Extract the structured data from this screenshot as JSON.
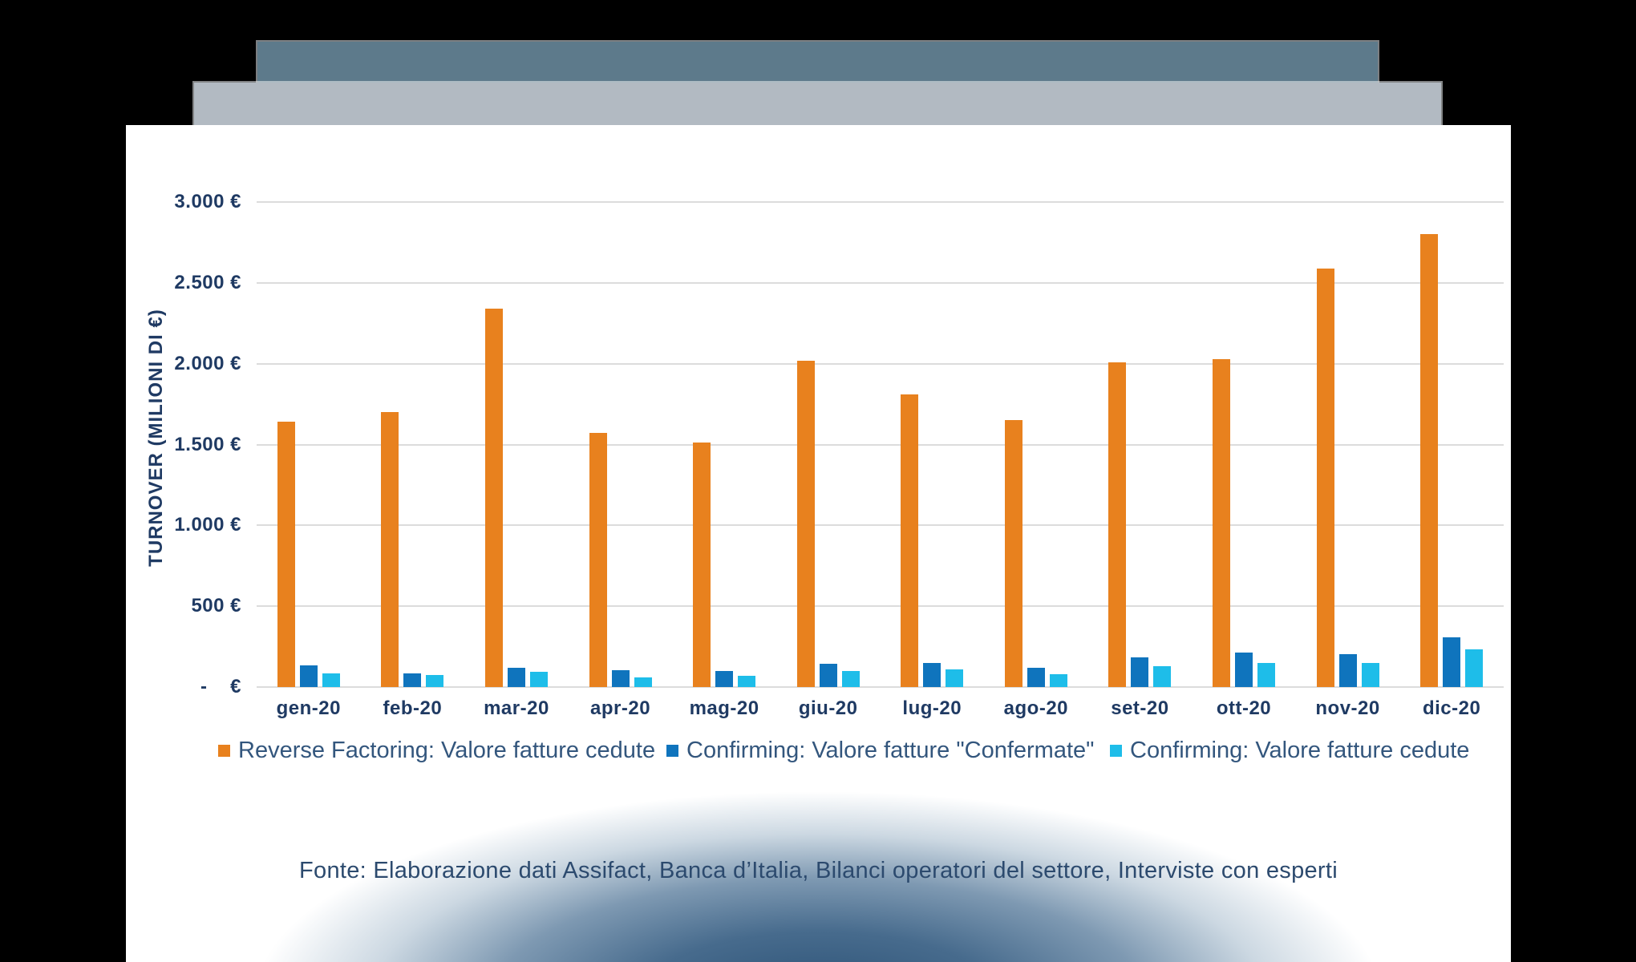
{
  "window": {
    "background_color": "#000000",
    "top_bar_dark_color": "#5d7a8b",
    "top_bar_light_color": "#b2bac2",
    "card_color": "#ffffff"
  },
  "chart_data": {
    "type": "bar",
    "title": "",
    "xlabel": "",
    "ylabel": "TURNOVER (MILIONI DI €)",
    "ylim": [
      0,
      3000
    ],
    "ytick_interval": 500,
    "ytick_labels": [
      "3.000 €",
      "2.500 €",
      "2.000 €",
      "1.500 €",
      "1.000 €",
      "500 €",
      "-    €"
    ],
    "grid": true,
    "legend_position": "bottom",
    "categories": [
      "gen-20",
      "feb-20",
      "mar-20",
      "apr-20",
      "mag-20",
      "giu-20",
      "lug-20",
      "ago-20",
      "set-20",
      "ott-20",
      "nov-20",
      "dic-20"
    ],
    "series": [
      {
        "name": "Reverse Factoring: Valore fatture cedute",
        "color": "#e8811e",
        "values": [
          1640,
          1700,
          2340,
          1570,
          1510,
          2020,
          1810,
          1650,
          2010,
          2030,
          2590,
          2800
        ]
      },
      {
        "name": "Confirming: Valore fatture \"Confermate\"",
        "color": "#0f74bd",
        "values": [
          135,
          85,
          120,
          105,
          100,
          145,
          150,
          120,
          185,
          215,
          205,
          305
        ]
      },
      {
        "name": "Confirming: Valore fatture cedute",
        "color": "#1ebde9",
        "values": [
          85,
          75,
          95,
          60,
          70,
          100,
          110,
          80,
          130,
          150,
          150,
          235
        ]
      }
    ]
  },
  "footer": {
    "source_text": "Fonte: Elaborazione dati Assifact, Banca d’Italia, Bilanci operatori del settore, Interviste con esperti"
  }
}
